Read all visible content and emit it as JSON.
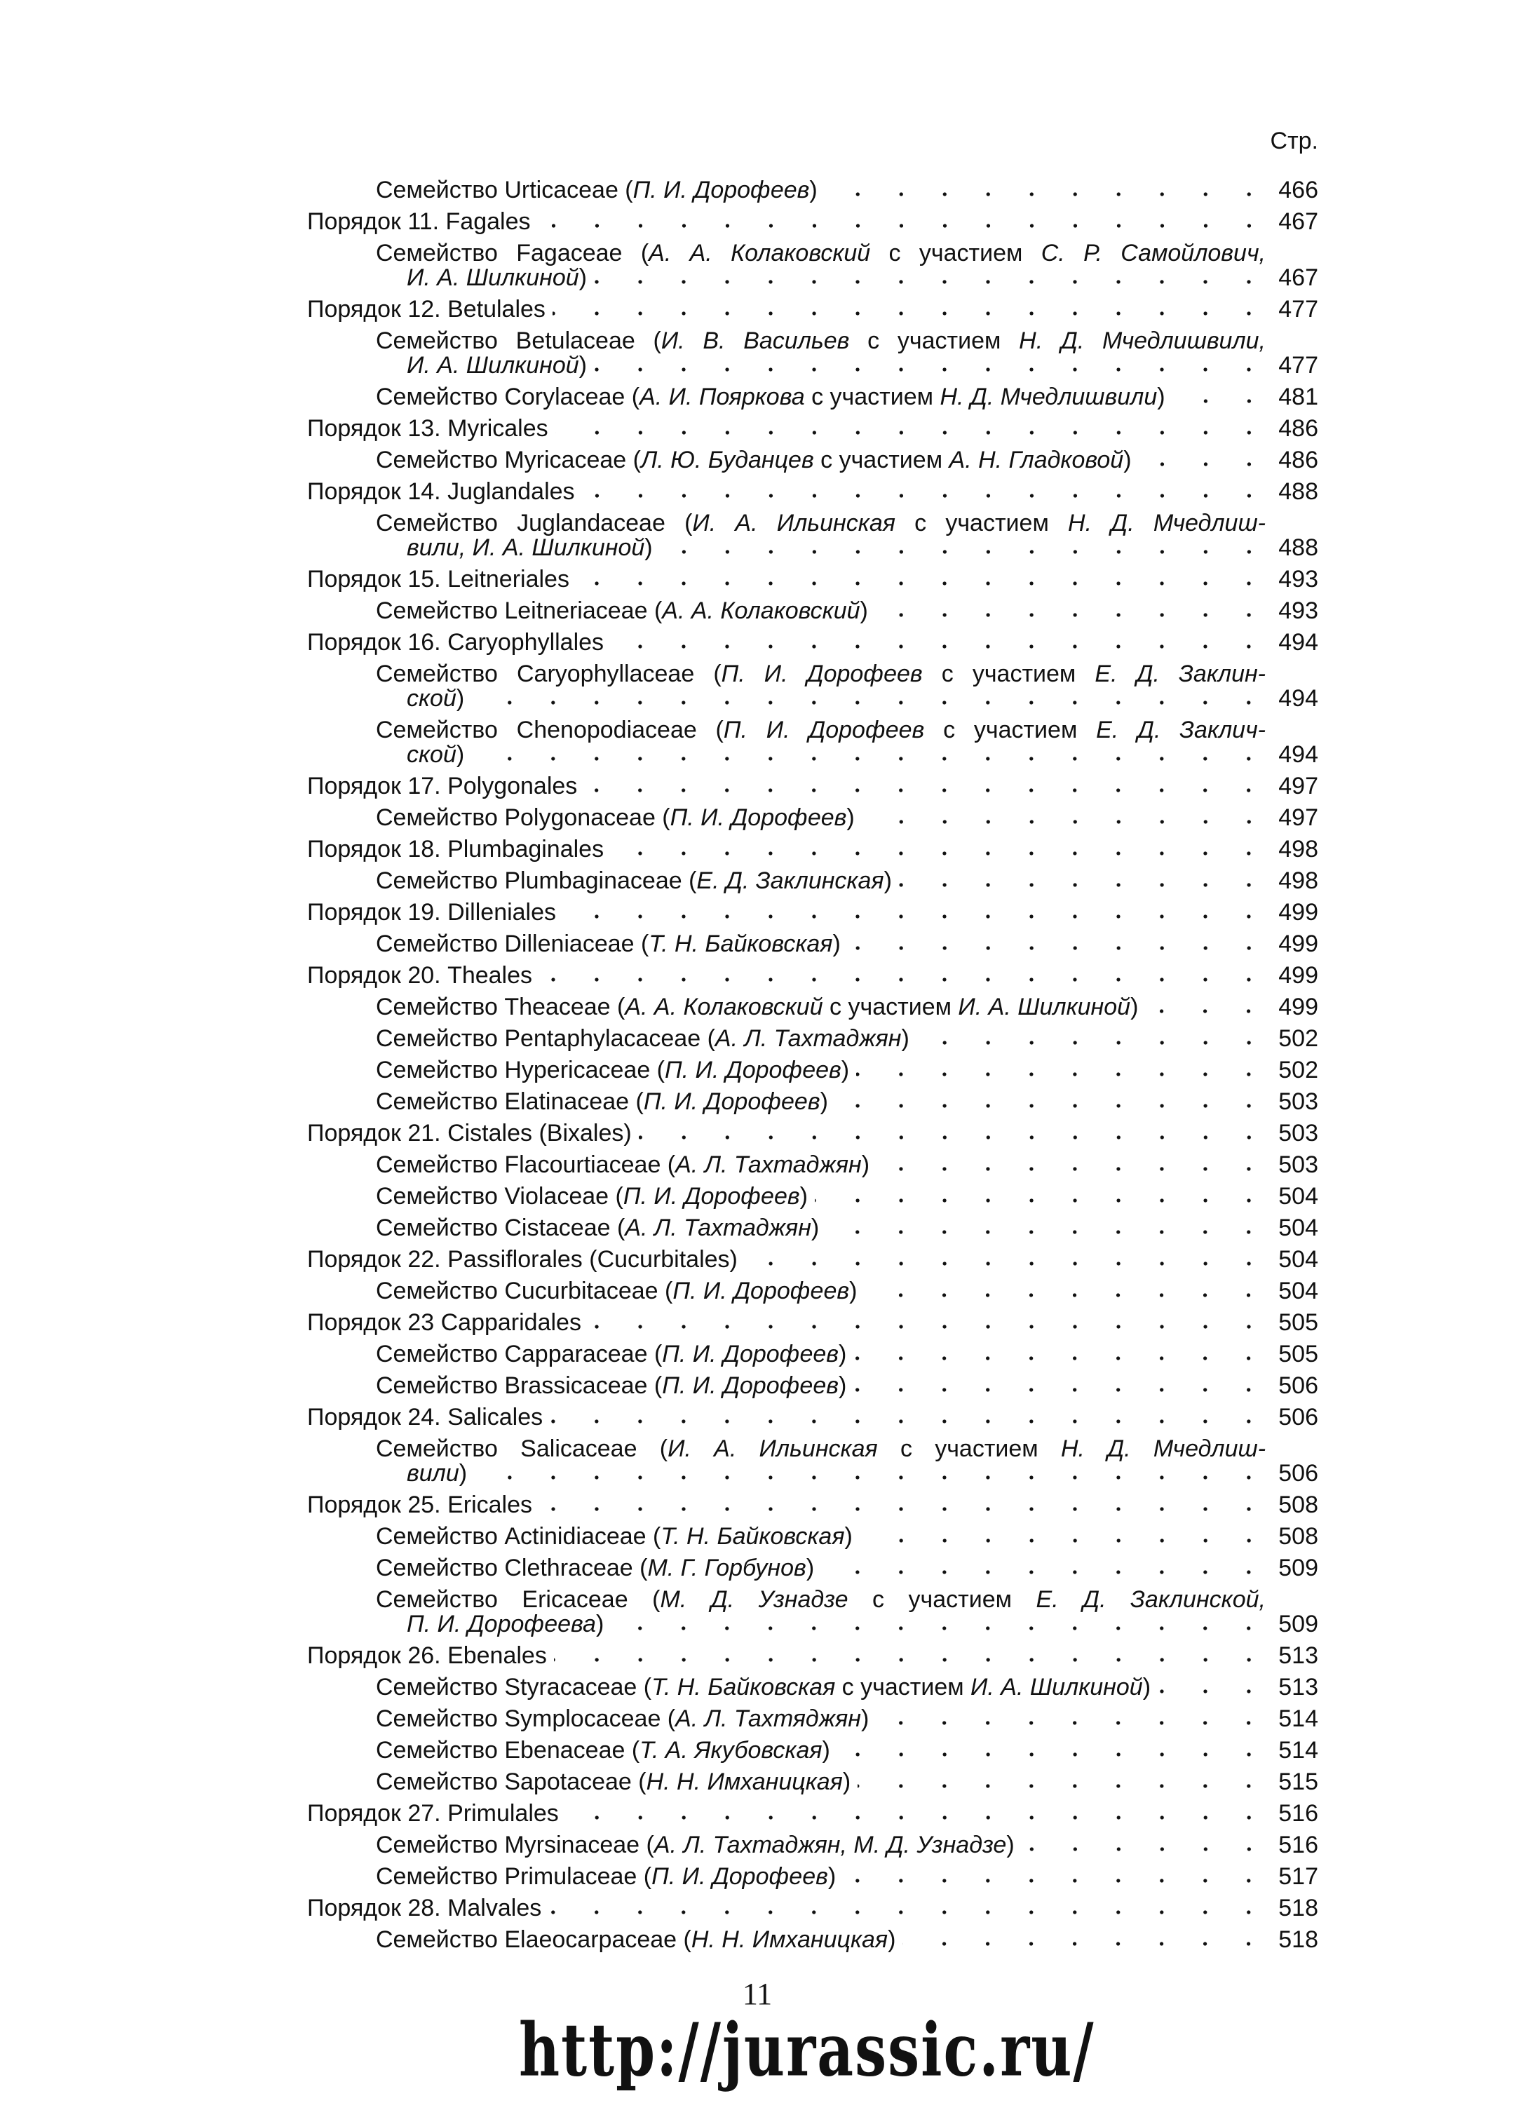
{
  "header": {
    "page_col_label": "Стр."
  },
  "entries": [
    {
      "kind": "family",
      "lines": [
        [
          "Семейство Urticaceae (",
          "П. И. Дорофеев",
          ")"
        ]
      ],
      "page": "466"
    },
    {
      "kind": "order",
      "lines": [
        [
          "Порядок 11. Fagales"
        ]
      ],
      "page": "467"
    },
    {
      "kind": "family",
      "lines": [
        [
          "Семейство Fagaceae (",
          "А. А. Колаковский",
          " с участием ",
          "С. Р. Самойлович,"
        ],
        [
          "",
          "И. А. Шилкиной",
          ")"
        ]
      ],
      "page": "467"
    },
    {
      "kind": "order",
      "lines": [
        [
          "Порядок 12. Betulales"
        ]
      ],
      "page": "477"
    },
    {
      "kind": "family",
      "lines": [
        [
          "Семейство Betulaceae (",
          "И. В. Васильев",
          " с участием ",
          "Н. Д. Мчедлишвили,"
        ],
        [
          "",
          "И. А. Шилкиной",
          ")"
        ]
      ],
      "page": "477"
    },
    {
      "kind": "family",
      "lines": [
        [
          "Семейство Corylaceae (",
          "А. И. Пояркова",
          " с участием ",
          "Н. Д. Мчедлишвили",
          ")"
        ]
      ],
      "page": "481"
    },
    {
      "kind": "order",
      "lines": [
        [
          "Порядок 13. Myricales"
        ]
      ],
      "page": "486"
    },
    {
      "kind": "family",
      "lines": [
        [
          "Семейство Myricaceae (",
          "Л. Ю. Буданцев",
          " с участием ",
          "А. Н. Гладковой",
          ")"
        ]
      ],
      "page": "486"
    },
    {
      "kind": "order",
      "lines": [
        [
          "Порядок 14. Juglandales"
        ]
      ],
      "page": "488"
    },
    {
      "kind": "family",
      "lines": [
        [
          "Семейство Juglandaceae (",
          "И. А. Ильинская",
          " с участием ",
          "Н. Д. Мчедлиш-"
        ],
        [
          "",
          "вили, И. А. Шилкиной",
          ")"
        ]
      ],
      "page": "488"
    },
    {
      "kind": "order",
      "lines": [
        [
          "Порядок 15. Leitneriales"
        ]
      ],
      "page": "493"
    },
    {
      "kind": "family",
      "lines": [
        [
          "Семейство Leitneriaceae (",
          "А. А. Колаковский",
          ")"
        ]
      ],
      "page": "493"
    },
    {
      "kind": "order",
      "lines": [
        [
          "Порядок 16. Caryophyllales"
        ]
      ],
      "page": "494"
    },
    {
      "kind": "family",
      "lines": [
        [
          "Семейство Caryophyllaceae (",
          "П. И. Дорофеев",
          " с участием ",
          "Е. Д. Заклин-"
        ],
        [
          "",
          "ской",
          ")"
        ]
      ],
      "page": "494"
    },
    {
      "kind": "family",
      "lines": [
        [
          "Семейство Chenopodiaceae (",
          "П. И. Дорофеев",
          " с участием ",
          "Е. Д. Заклич-"
        ],
        [
          "",
          "ской",
          ")"
        ]
      ],
      "page": "494"
    },
    {
      "kind": "order",
      "lines": [
        [
          "Порядок 17. Polygonales"
        ]
      ],
      "page": "497"
    },
    {
      "kind": "family",
      "lines": [
        [
          "Семейство Polygonaceae (",
          "П. И. Дорофеев",
          ")"
        ]
      ],
      "page": "497"
    },
    {
      "kind": "order",
      "lines": [
        [
          "Порядок 18. Plumbaginales"
        ]
      ],
      "page": "498"
    },
    {
      "kind": "family",
      "lines": [
        [
          "Семейство Plumbaginaceae (",
          "Е. Д. Заклинская",
          ")"
        ]
      ],
      "page": "498"
    },
    {
      "kind": "order",
      "lines": [
        [
          "Порядок 19. Dilleniales"
        ]
      ],
      "page": "499"
    },
    {
      "kind": "family",
      "lines": [
        [
          "Семейство Dilleniaceae (",
          "Т. Н. Байковская",
          ")"
        ]
      ],
      "page": "499"
    },
    {
      "kind": "order",
      "lines": [
        [
          "Порядок 20. Theales"
        ]
      ],
      "page": "499"
    },
    {
      "kind": "family",
      "lines": [
        [
          "Семейство Theaceae (",
          "А. А. Колаковский",
          " с участием ",
          "И. А. Шилкиной",
          ")"
        ]
      ],
      "page": "499"
    },
    {
      "kind": "family",
      "lines": [
        [
          "Семейство Pentaphylacaceae (",
          "А. Л. Тахтаджян",
          ")"
        ]
      ],
      "page": "502"
    },
    {
      "kind": "family",
      "lines": [
        [
          "Семейство Hypericaceae (",
          "П. И. Дорофеев",
          ")"
        ]
      ],
      "page": "502"
    },
    {
      "kind": "family",
      "lines": [
        [
          "Семейство Elatinaceae (",
          "П. И. Дорофеев",
          ")"
        ]
      ],
      "page": "503"
    },
    {
      "kind": "order",
      "lines": [
        [
          "Порядок 21. Cistales (Bixales)"
        ]
      ],
      "page": "503"
    },
    {
      "kind": "family",
      "lines": [
        [
          "Семейство Flacourtiaceae (",
          "А. Л. Тахтаджян",
          ")"
        ]
      ],
      "page": "503"
    },
    {
      "kind": "family",
      "lines": [
        [
          "Семейство Violaceae (",
          "П. И. Дорофеев",
          ")"
        ]
      ],
      "page": "504"
    },
    {
      "kind": "family",
      "lines": [
        [
          "Семейство Cistaceae (",
          "А. Л. Тахтаджян",
          ")"
        ]
      ],
      "page": "504"
    },
    {
      "kind": "order",
      "lines": [
        [
          "Порядок 22. Passiflorales (Cucurbitales)"
        ]
      ],
      "page": "504"
    },
    {
      "kind": "family",
      "lines": [
        [
          "Семейство Cucurbitaceae (",
          "П. И. Дорофеев",
          ")"
        ]
      ],
      "page": "504"
    },
    {
      "kind": "order",
      "lines": [
        [
          "Порядок 23 Capparidales"
        ]
      ],
      "page": "505"
    },
    {
      "kind": "family",
      "lines": [
        [
          "Семейство Capparaceae (",
          "П. И. Дорофеев",
          ")"
        ]
      ],
      "page": "505"
    },
    {
      "kind": "family",
      "lines": [
        [
          "Семейство Brassicaceae (",
          "П. И. Дорофеев",
          ")"
        ]
      ],
      "page": "506"
    },
    {
      "kind": "order",
      "lines": [
        [
          "Порядок 24. Salicales"
        ]
      ],
      "page": "506"
    },
    {
      "kind": "family",
      "lines": [
        [
          "Семейство Salicaceae (",
          "И. А. Ильинская",
          " с участием ",
          "Н. Д. Мчедлиш-"
        ],
        [
          "",
          "вили",
          ")"
        ]
      ],
      "page": "506"
    },
    {
      "kind": "order",
      "lines": [
        [
          "Порядок 25. Ericales"
        ]
      ],
      "page": "508"
    },
    {
      "kind": "family",
      "lines": [
        [
          "Семейство Actinidiaceae (",
          "Т. Н. Байковская",
          ")"
        ]
      ],
      "page": "508"
    },
    {
      "kind": "family",
      "lines": [
        [
          "Семейство Clethraceae (",
          "М. Г. Горбунов",
          ")"
        ]
      ],
      "page": "509"
    },
    {
      "kind": "family",
      "lines": [
        [
          "Семейство Ericaceae (",
          "М. Д. Узнадзе",
          " с участием ",
          "Е. Д. Заклинской,"
        ],
        [
          "",
          "П. И. Дорофеева",
          ")"
        ]
      ],
      "page": "509"
    },
    {
      "kind": "order",
      "lines": [
        [
          "Порядок 26. Ebenales"
        ]
      ],
      "page": "513"
    },
    {
      "kind": "family",
      "lines": [
        [
          "Семейство Styracaceae (",
          "Т. Н. Байковская",
          " с участием ",
          "И. А. Шилкиной",
          ")"
        ]
      ],
      "page": "513"
    },
    {
      "kind": "family",
      "lines": [
        [
          "Семейство Symplocaceae (",
          "А. Л. Тахтяджян",
          ")"
        ]
      ],
      "page": "514"
    },
    {
      "kind": "family",
      "lines": [
        [
          "Семейство Ebenaceae (",
          "Т. А. Якубовская",
          ")"
        ]
      ],
      "page": "514"
    },
    {
      "kind": "family",
      "lines": [
        [
          "Семейство Sapotaceae (",
          "Н. Н. Имханицкая",
          ")"
        ]
      ],
      "page": "515"
    },
    {
      "kind": "order",
      "lines": [
        [
          "Порядок 27. Primulales"
        ]
      ],
      "page": "516"
    },
    {
      "kind": "family",
      "lines": [
        [
          "Семейство Myrsinaceae (",
          "А. Л. Тахтаджян, М. Д. Узнадзе",
          ")"
        ]
      ],
      "page": "516"
    },
    {
      "kind": "family",
      "lines": [
        [
          "Семейство Primulaceae (",
          "П. И. Дорофеев",
          ")"
        ]
      ],
      "page": "517"
    },
    {
      "kind": "order",
      "lines": [
        [
          "Порядок 28. Malvales"
        ]
      ],
      "page": "518"
    },
    {
      "kind": "family",
      "lines": [
        [
          "Семейство Elaeocarpaceae (",
          "Н. Н. Имханицкая",
          ")"
        ]
      ],
      "page": "518"
    }
  ],
  "footer": {
    "page_number": "11",
    "watermark": "http://jurassic.ru/"
  }
}
